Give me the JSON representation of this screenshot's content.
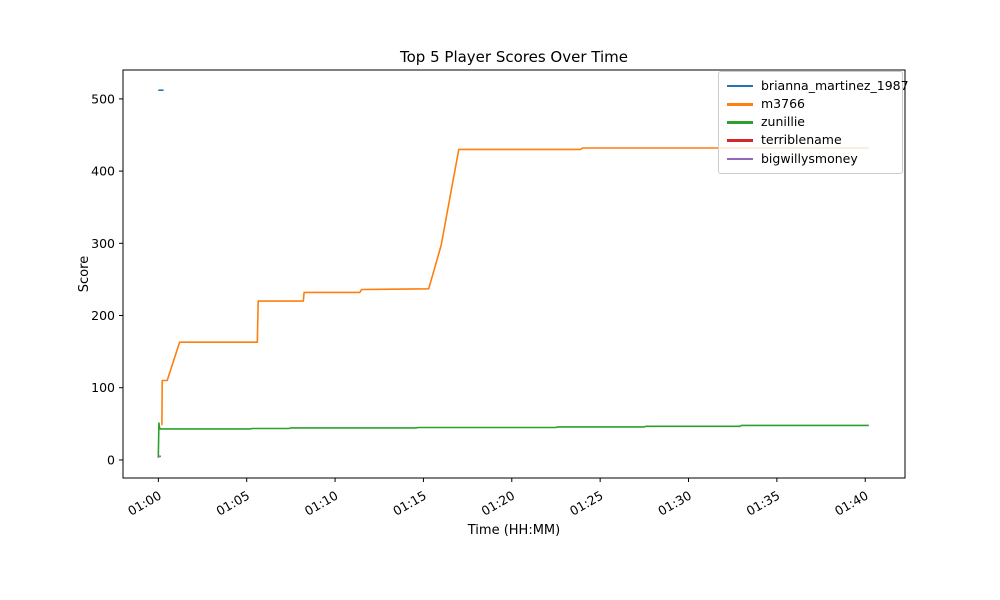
{
  "chart_data": {
    "type": "line",
    "title": "Top 5 Player Scores Over Time",
    "xlabel": "Time (HH:MM)",
    "ylabel": "Score",
    "x_unit": "minutes after 01:00",
    "xlim": [
      -2.0,
      42.25
    ],
    "ylim": [
      -25,
      540
    ],
    "grid": false,
    "legend_position": "upper right",
    "x_ticks": [
      {
        "t": 0,
        "label": "01:00"
      },
      {
        "t": 5,
        "label": "01:05"
      },
      {
        "t": 10,
        "label": "01:10"
      },
      {
        "t": 15,
        "label": "01:15"
      },
      {
        "t": 20,
        "label": "01:20"
      },
      {
        "t": 25,
        "label": "01:25"
      },
      {
        "t": 30,
        "label": "01:30"
      },
      {
        "t": 35,
        "label": "01:35"
      },
      {
        "t": 40,
        "label": "01:40"
      }
    ],
    "y_ticks": [
      {
        "v": 0,
        "label": "0"
      },
      {
        "v": 100,
        "label": "100"
      },
      {
        "v": 200,
        "label": "200"
      },
      {
        "v": 300,
        "label": "300"
      },
      {
        "v": 400,
        "label": "400"
      },
      {
        "v": 500,
        "label": "500"
      }
    ],
    "series": [
      {
        "name": "brianna_martinez_1987",
        "color": "#1f77b4",
        "points": [
          [
            0,
            512
          ],
          [
            0.3,
            512
          ]
        ]
      },
      {
        "name": "m3766",
        "color": "#ff7f0e",
        "points": [
          [
            0.2,
            48
          ],
          [
            0.22,
            110
          ],
          [
            0.5,
            110
          ],
          [
            1.2,
            163
          ],
          [
            5.6,
            163
          ],
          [
            5.65,
            220
          ],
          [
            8.2,
            220
          ],
          [
            8.25,
            232
          ],
          [
            11.4,
            232
          ],
          [
            11.5,
            236
          ],
          [
            15.3,
            237
          ],
          [
            16.0,
            297
          ],
          [
            17.0,
            430
          ],
          [
            23.9,
            430
          ],
          [
            24.0,
            432
          ],
          [
            40.2,
            432
          ]
        ]
      },
      {
        "name": "zunillie",
        "color": "#2ca02c",
        "points": [
          [
            0,
            3
          ],
          [
            0.03,
            51
          ],
          [
            0.08,
            43
          ],
          [
            5.2,
            43
          ],
          [
            5.3,
            43.6
          ],
          [
            7.4,
            43.6
          ],
          [
            7.5,
            44.4
          ],
          [
            14.6,
            44.4
          ],
          [
            14.7,
            44.9
          ],
          [
            22.5,
            44.9
          ],
          [
            22.6,
            45.8
          ],
          [
            27.5,
            45.8
          ],
          [
            27.6,
            46.6
          ],
          [
            32.9,
            46.6
          ],
          [
            33.0,
            47.9
          ],
          [
            40.2,
            47.9
          ]
        ]
      },
      {
        "name": "terriblename",
        "color": "#d62728",
        "points": [
          [
            0,
            5
          ],
          [
            0.15,
            5
          ]
        ]
      },
      {
        "name": "bigwillysmoney",
        "color": "#9467bd",
        "points": [
          [
            0,
            5
          ],
          [
            0.15,
            5
          ]
        ]
      }
    ]
  }
}
